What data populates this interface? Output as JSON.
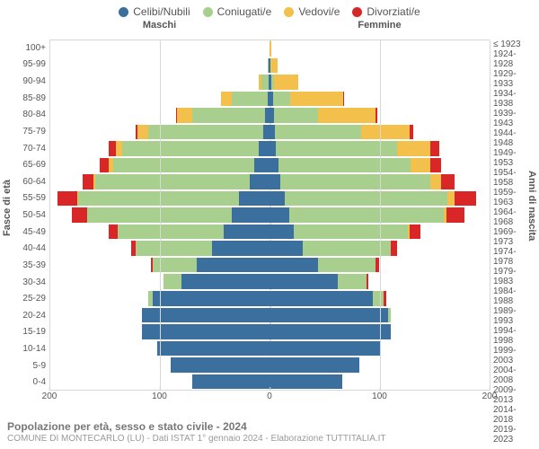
{
  "legend": {
    "items": [
      {
        "label": "Celibi/Nubili",
        "color": "#3b6f9e"
      },
      {
        "label": "Coniugati/e",
        "color": "#a8cf8e"
      },
      {
        "label": "Vedovi/e",
        "color": "#f2c04b"
      },
      {
        "label": "Divorziati/e",
        "color": "#d92626"
      }
    ]
  },
  "header": {
    "male_label": "Maschi",
    "female_label": "Femmine"
  },
  "axes": {
    "y_left_title": "Fasce di età",
    "y_right_title": "Anni di nascita",
    "x_max": 200,
    "x_ticks": [
      200,
      100,
      0,
      100,
      200
    ],
    "x_tick_labels": [
      "200",
      "100",
      "0",
      "100",
      "200"
    ],
    "grid_positions_pct": [
      0,
      25,
      50,
      75,
      100
    ]
  },
  "bands": [
    {
      "age": "100+",
      "birth": "≤ 1923",
      "m": {
        "c": 0,
        "k": 0,
        "v": 0,
        "d": 0
      },
      "f": {
        "c": 0,
        "k": 0,
        "v": 2,
        "d": 0
      }
    },
    {
      "age": "95-99",
      "birth": "1924-1928",
      "m": {
        "c": 1,
        "k": 1,
        "v": 0,
        "d": 0
      },
      "f": {
        "c": 1,
        "k": 0,
        "v": 6,
        "d": 0
      }
    },
    {
      "age": "90-94",
      "birth": "1929-1933",
      "m": {
        "c": 1,
        "k": 6,
        "v": 3,
        "d": 0
      },
      "f": {
        "c": 2,
        "k": 2,
        "v": 22,
        "d": 0
      }
    },
    {
      "age": "85-89",
      "birth": "1934-1938",
      "m": {
        "c": 2,
        "k": 32,
        "v": 10,
        "d": 0
      },
      "f": {
        "c": 3,
        "k": 16,
        "v": 48,
        "d": 1
      }
    },
    {
      "age": "80-84",
      "birth": "1939-1943",
      "m": {
        "c": 4,
        "k": 66,
        "v": 14,
        "d": 1
      },
      "f": {
        "c": 4,
        "k": 40,
        "v": 52,
        "d": 2
      }
    },
    {
      "age": "75-79",
      "birth": "1944-1948",
      "m": {
        "c": 6,
        "k": 104,
        "v": 10,
        "d": 2
      },
      "f": {
        "c": 5,
        "k": 78,
        "v": 44,
        "d": 4
      }
    },
    {
      "age": "70-74",
      "birth": "1949-1953",
      "m": {
        "c": 10,
        "k": 124,
        "v": 6,
        "d": 6
      },
      "f": {
        "c": 6,
        "k": 110,
        "v": 30,
        "d": 8
      }
    },
    {
      "age": "65-69",
      "birth": "1954-1958",
      "m": {
        "c": 14,
        "k": 128,
        "v": 4,
        "d": 8
      },
      "f": {
        "c": 8,
        "k": 120,
        "v": 18,
        "d": 10
      }
    },
    {
      "age": "60-64",
      "birth": "1959-1963",
      "m": {
        "c": 18,
        "k": 140,
        "v": 2,
        "d": 10
      },
      "f": {
        "c": 10,
        "k": 136,
        "v": 10,
        "d": 12
      }
    },
    {
      "age": "55-59",
      "birth": "1964-1968",
      "m": {
        "c": 28,
        "k": 146,
        "v": 1,
        "d": 18
      },
      "f": {
        "c": 14,
        "k": 148,
        "v": 6,
        "d": 20
      }
    },
    {
      "age": "50-54",
      "birth": "1969-1973",
      "m": {
        "c": 34,
        "k": 132,
        "v": 0,
        "d": 14
      },
      "f": {
        "c": 18,
        "k": 140,
        "v": 3,
        "d": 16
      }
    },
    {
      "age": "45-49",
      "birth": "1974-1978",
      "m": {
        "c": 42,
        "k": 96,
        "v": 0,
        "d": 8
      },
      "f": {
        "c": 22,
        "k": 104,
        "v": 1,
        "d": 10
      }
    },
    {
      "age": "40-44",
      "birth": "1979-1983",
      "m": {
        "c": 52,
        "k": 70,
        "v": 0,
        "d": 4
      },
      "f": {
        "c": 30,
        "k": 80,
        "v": 0,
        "d": 6
      }
    },
    {
      "age": "35-39",
      "birth": "1984-1988",
      "m": {
        "c": 66,
        "k": 40,
        "v": 0,
        "d": 2
      },
      "f": {
        "c": 44,
        "k": 52,
        "v": 0,
        "d": 4
      }
    },
    {
      "age": "30-34",
      "birth": "1989-1993",
      "m": {
        "c": 80,
        "k": 16,
        "v": 0,
        "d": 0
      },
      "f": {
        "c": 62,
        "k": 26,
        "v": 0,
        "d": 2
      }
    },
    {
      "age": "25-29",
      "birth": "1994-1998",
      "m": {
        "c": 106,
        "k": 4,
        "v": 0,
        "d": 0
      },
      "f": {
        "c": 94,
        "k": 10,
        "v": 0,
        "d": 2
      }
    },
    {
      "age": "20-24",
      "birth": "1999-2003",
      "m": {
        "c": 116,
        "k": 0,
        "v": 0,
        "d": 0
      },
      "f": {
        "c": 108,
        "k": 2,
        "v": 0,
        "d": 0
      }
    },
    {
      "age": "15-19",
      "birth": "2004-2008",
      "m": {
        "c": 116,
        "k": 0,
        "v": 0,
        "d": 0
      },
      "f": {
        "c": 110,
        "k": 0,
        "v": 0,
        "d": 0
      }
    },
    {
      "age": "10-14",
      "birth": "2009-2013",
      "m": {
        "c": 102,
        "k": 0,
        "v": 0,
        "d": 0
      },
      "f": {
        "c": 100,
        "k": 0,
        "v": 0,
        "d": 0
      }
    },
    {
      "age": "5-9",
      "birth": "2014-2018",
      "m": {
        "c": 90,
        "k": 0,
        "v": 0,
        "d": 0
      },
      "f": {
        "c": 82,
        "k": 0,
        "v": 0,
        "d": 0
      }
    },
    {
      "age": "0-4",
      "birth": "2019-2023",
      "m": {
        "c": 70,
        "k": 0,
        "v": 0,
        "d": 0
      },
      "f": {
        "c": 66,
        "k": 0,
        "v": 0,
        "d": 0
      }
    }
  ],
  "footer": {
    "title": "Popolazione per età, sesso e stato civile - 2024",
    "subtitle": "COMUNE DI MONTECARLO (LU) - Dati ISTAT 1° gennaio 2024 - Elaborazione TUTTITALIA.IT"
  },
  "style": {
    "colors": {
      "c": "#3b6f9e",
      "k": "#a8cf8e",
      "v": "#f2c04b",
      "d": "#d92626"
    },
    "grid_color": "#d8d8d8",
    "background": "#ffffff"
  }
}
